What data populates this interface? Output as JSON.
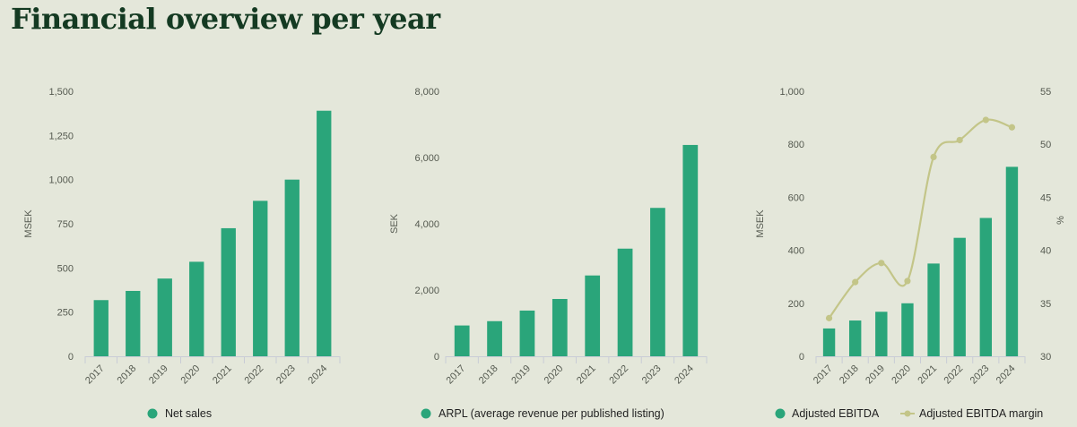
{
  "page_title": "Financial overview per year",
  "colors": {
    "bar": "#2aa57a",
    "line": "#c3c588",
    "axis": "#c9ccd6",
    "text": "#555a50"
  },
  "chart_data": [
    {
      "type": "bar",
      "categories": [
        "2017",
        "2018",
        "2019",
        "2020",
        "2021",
        "2022",
        "2023",
        "2024"
      ],
      "series": [
        {
          "name": "Net sales",
          "values": [
            318,
            370,
            440,
            535,
            725,
            880,
            1000,
            1390
          ]
        }
      ],
      "ylabel": "MSEK",
      "ylim": [
        0,
        1500
      ],
      "yticks": [
        0,
        250,
        500,
        750,
        1000,
        1250,
        1500
      ],
      "ytick_labels": [
        "0",
        "250",
        "500",
        "750",
        "1,000",
        "1,250",
        "1,500"
      ],
      "legend": "bottom"
    },
    {
      "type": "bar",
      "categories": [
        "2017",
        "2018",
        "2019",
        "2020",
        "2021",
        "2022",
        "2023",
        "2024"
      ],
      "series": [
        {
          "name": "ARPL (average revenue per published listing)",
          "values": [
            930,
            1060,
            1380,
            1730,
            2440,
            3250,
            4480,
            6380
          ]
        }
      ],
      "ylabel": "SEK",
      "ylim": [
        0,
        8000
      ],
      "yticks": [
        0,
        2000,
        4000,
        6000,
        8000
      ],
      "ytick_labels": [
        "0",
        "2,000",
        "4,000",
        "6,000",
        "8,000"
      ],
      "legend": "bottom"
    },
    {
      "type": "bar",
      "categories": [
        "2017",
        "2018",
        "2019",
        "2020",
        "2021",
        "2022",
        "2023",
        "2024"
      ],
      "series": [
        {
          "name": "Adjusted EBITDA",
          "type": "bar",
          "axis": "left",
          "values": [
            105,
            135,
            168,
            200,
            350,
            447,
            522,
            715
          ]
        },
        {
          "name": "Adjusted EBITDA margin",
          "type": "line",
          "axis": "right",
          "values": [
            33.6,
            37.0,
            38.8,
            37.1,
            48.8,
            50.4,
            52.3,
            51.6
          ]
        }
      ],
      "ylabel": "MSEK",
      "ylim": [
        0,
        1000
      ],
      "yticks": [
        0,
        200,
        400,
        600,
        800,
        1000
      ],
      "ytick_labels": [
        "0",
        "200",
        "400",
        "600",
        "800",
        "1,000"
      ],
      "y2label": "%",
      "y2lim": [
        30,
        55
      ],
      "y2ticks": [
        30,
        35,
        40,
        45,
        50,
        55
      ],
      "y2tick_labels": [
        "30",
        "35",
        "40",
        "45",
        "50",
        "55"
      ],
      "legend": "bottom"
    }
  ]
}
